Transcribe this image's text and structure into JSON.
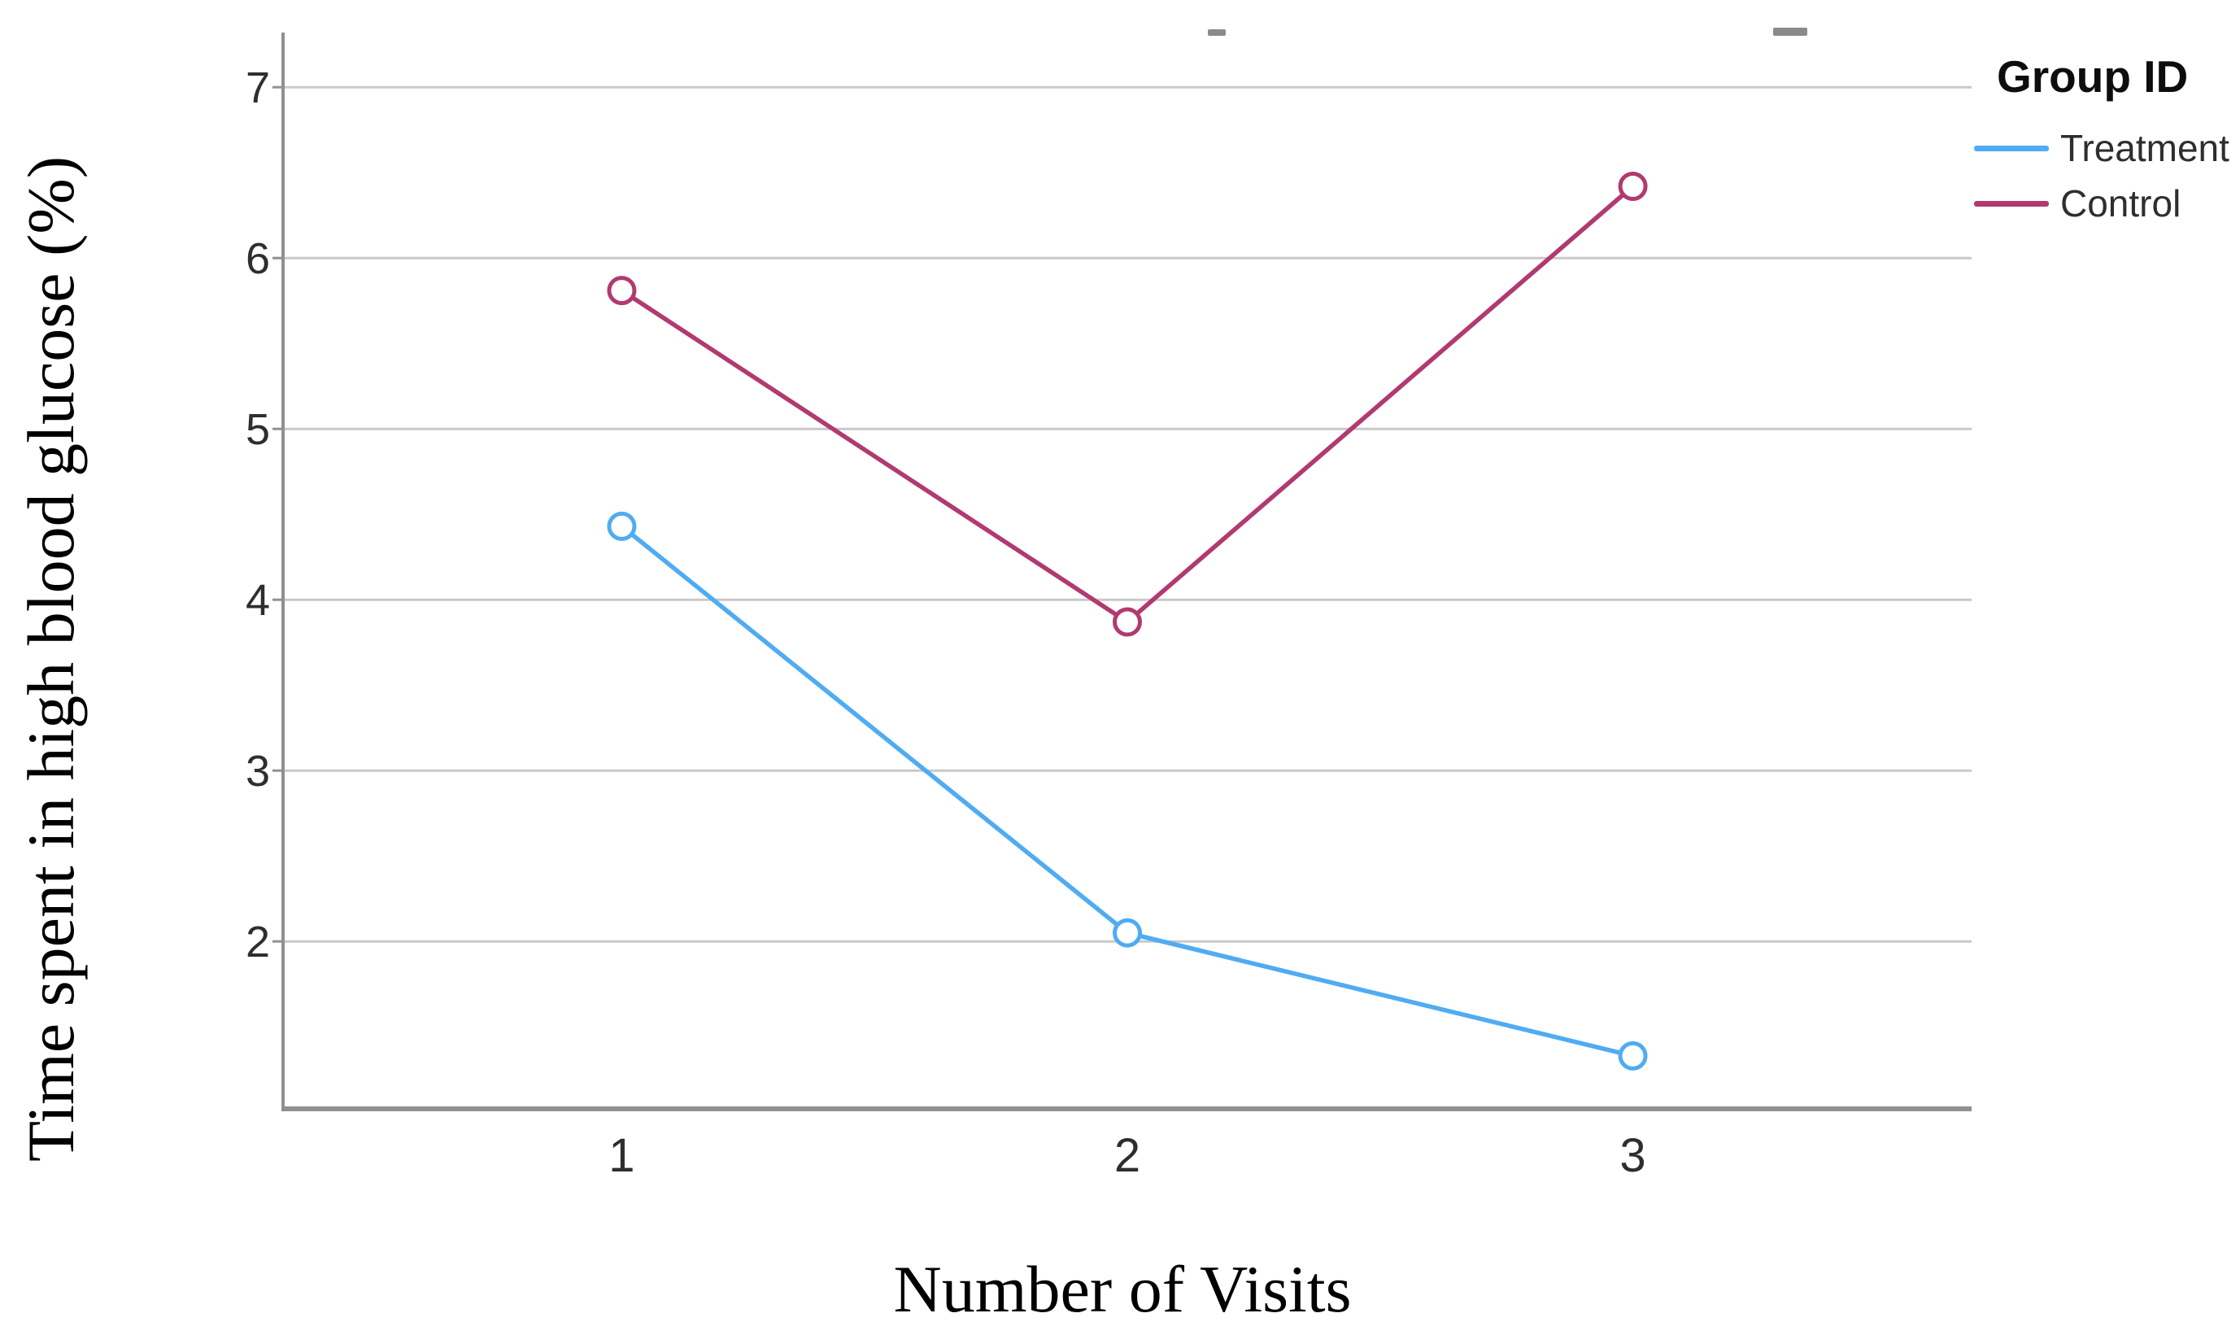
{
  "chart_data": {
    "type": "line",
    "title": "",
    "xlabel": "Number of Visits",
    "ylabel": "Time spent in high blood glucose (%)",
    "categories": [
      "1",
      "2",
      "3"
    ],
    "x": [
      1,
      2,
      3
    ],
    "series": [
      {
        "name": "Treatment",
        "color": "#4FACF2",
        "marker": "open-circle",
        "values": [
          4.43,
          2.05,
          1.33
        ]
      },
      {
        "name": "Control",
        "color": "#B13A70",
        "marker": "open-circle",
        "values": [
          5.81,
          3.87,
          6.42
        ]
      }
    ],
    "legend": {
      "title": "Group ID",
      "position": "top-right"
    },
    "axes": {
      "y_ticks": [
        2,
        3,
        4,
        5,
        6,
        7
      ],
      "ylim": [
        1.02,
        7.32
      ],
      "xlim": [
        0.33,
        3.67
      ],
      "grid": "horizontal-only"
    },
    "colors": {
      "gridline": "#C9C9C9",
      "axis": "#909090",
      "tick_label": "#2E2E2E",
      "title_text": "#000000"
    }
  }
}
